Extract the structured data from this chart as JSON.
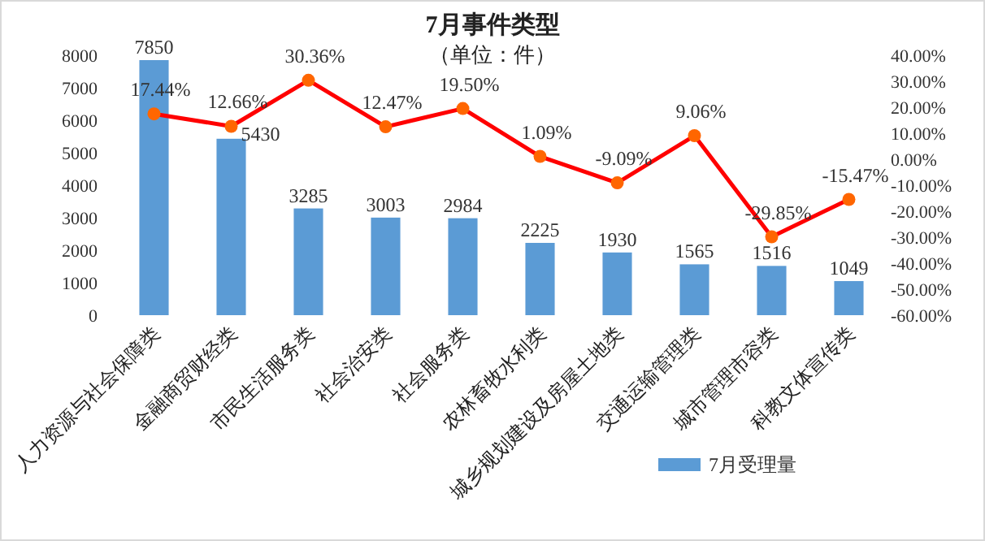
{
  "chart_data": {
    "type": "bar",
    "title": "7月事件类型",
    "subtitle": "（单位：件）",
    "categories": [
      "人力资源与社会保障类",
      "金融商贸财经类",
      "市民生活服务类",
      "社会治安类",
      "社会服务类",
      "农林畜牧水利类",
      "城乡规划建设及房屋土地类",
      "交通运输管理类",
      "城市管理市容类",
      "科教文体宣传类"
    ],
    "series": [
      {
        "name": "7月受理量",
        "color": "#5b9bd5",
        "values": [
          7850,
          5430,
          3285,
          3003,
          2984,
          2225,
          1930,
          1565,
          1516,
          1049
        ],
        "value_labels": [
          "7850",
          "5430",
          "3285",
          "3003",
          "2984",
          "2225",
          "1930",
          "1565",
          "1516",
          "1049"
        ]
      },
      {
        "type": "line",
        "axis": "y2",
        "color": "#ff0000",
        "marker": "circle",
        "values": [
          17.44,
          12.66,
          30.36,
          12.47,
          19.5,
          1.09,
          -9.09,
          9.06,
          -29.85,
          -15.47
        ],
        "value_labels": [
          "17.44%",
          "12.66%",
          "30.36%",
          "12.47%",
          "19.50%",
          "1.09%",
          "-9.09%",
          "9.06%",
          "-29.85%",
          "-15.47%"
        ]
      }
    ],
    "ylim": [
      0,
      8000
    ],
    "yticks": [
      0,
      1000,
      2000,
      3000,
      4000,
      5000,
      6000,
      7000,
      8000
    ],
    "y2lim": [
      -60,
      40
    ],
    "y2ticks": [
      {
        "value": -60,
        "label": "-60.00%"
      },
      {
        "value": -50,
        "label": "-50.00%"
      },
      {
        "value": -40,
        "label": "-40.00%"
      },
      {
        "value": -30,
        "label": "-30.00%"
      },
      {
        "value": -20,
        "label": "-20.00%"
      },
      {
        "value": -10,
        "label": "-10.00%"
      },
      {
        "value": 0,
        "label": "0.00%"
      },
      {
        "value": 10,
        "label": "10.00%"
      },
      {
        "value": 20,
        "label": "20.00%"
      },
      {
        "value": 30,
        "label": "30.00%"
      },
      {
        "value": 40,
        "label": "40.00%"
      }
    ],
    "grid": false,
    "legend": "bottom right"
  }
}
